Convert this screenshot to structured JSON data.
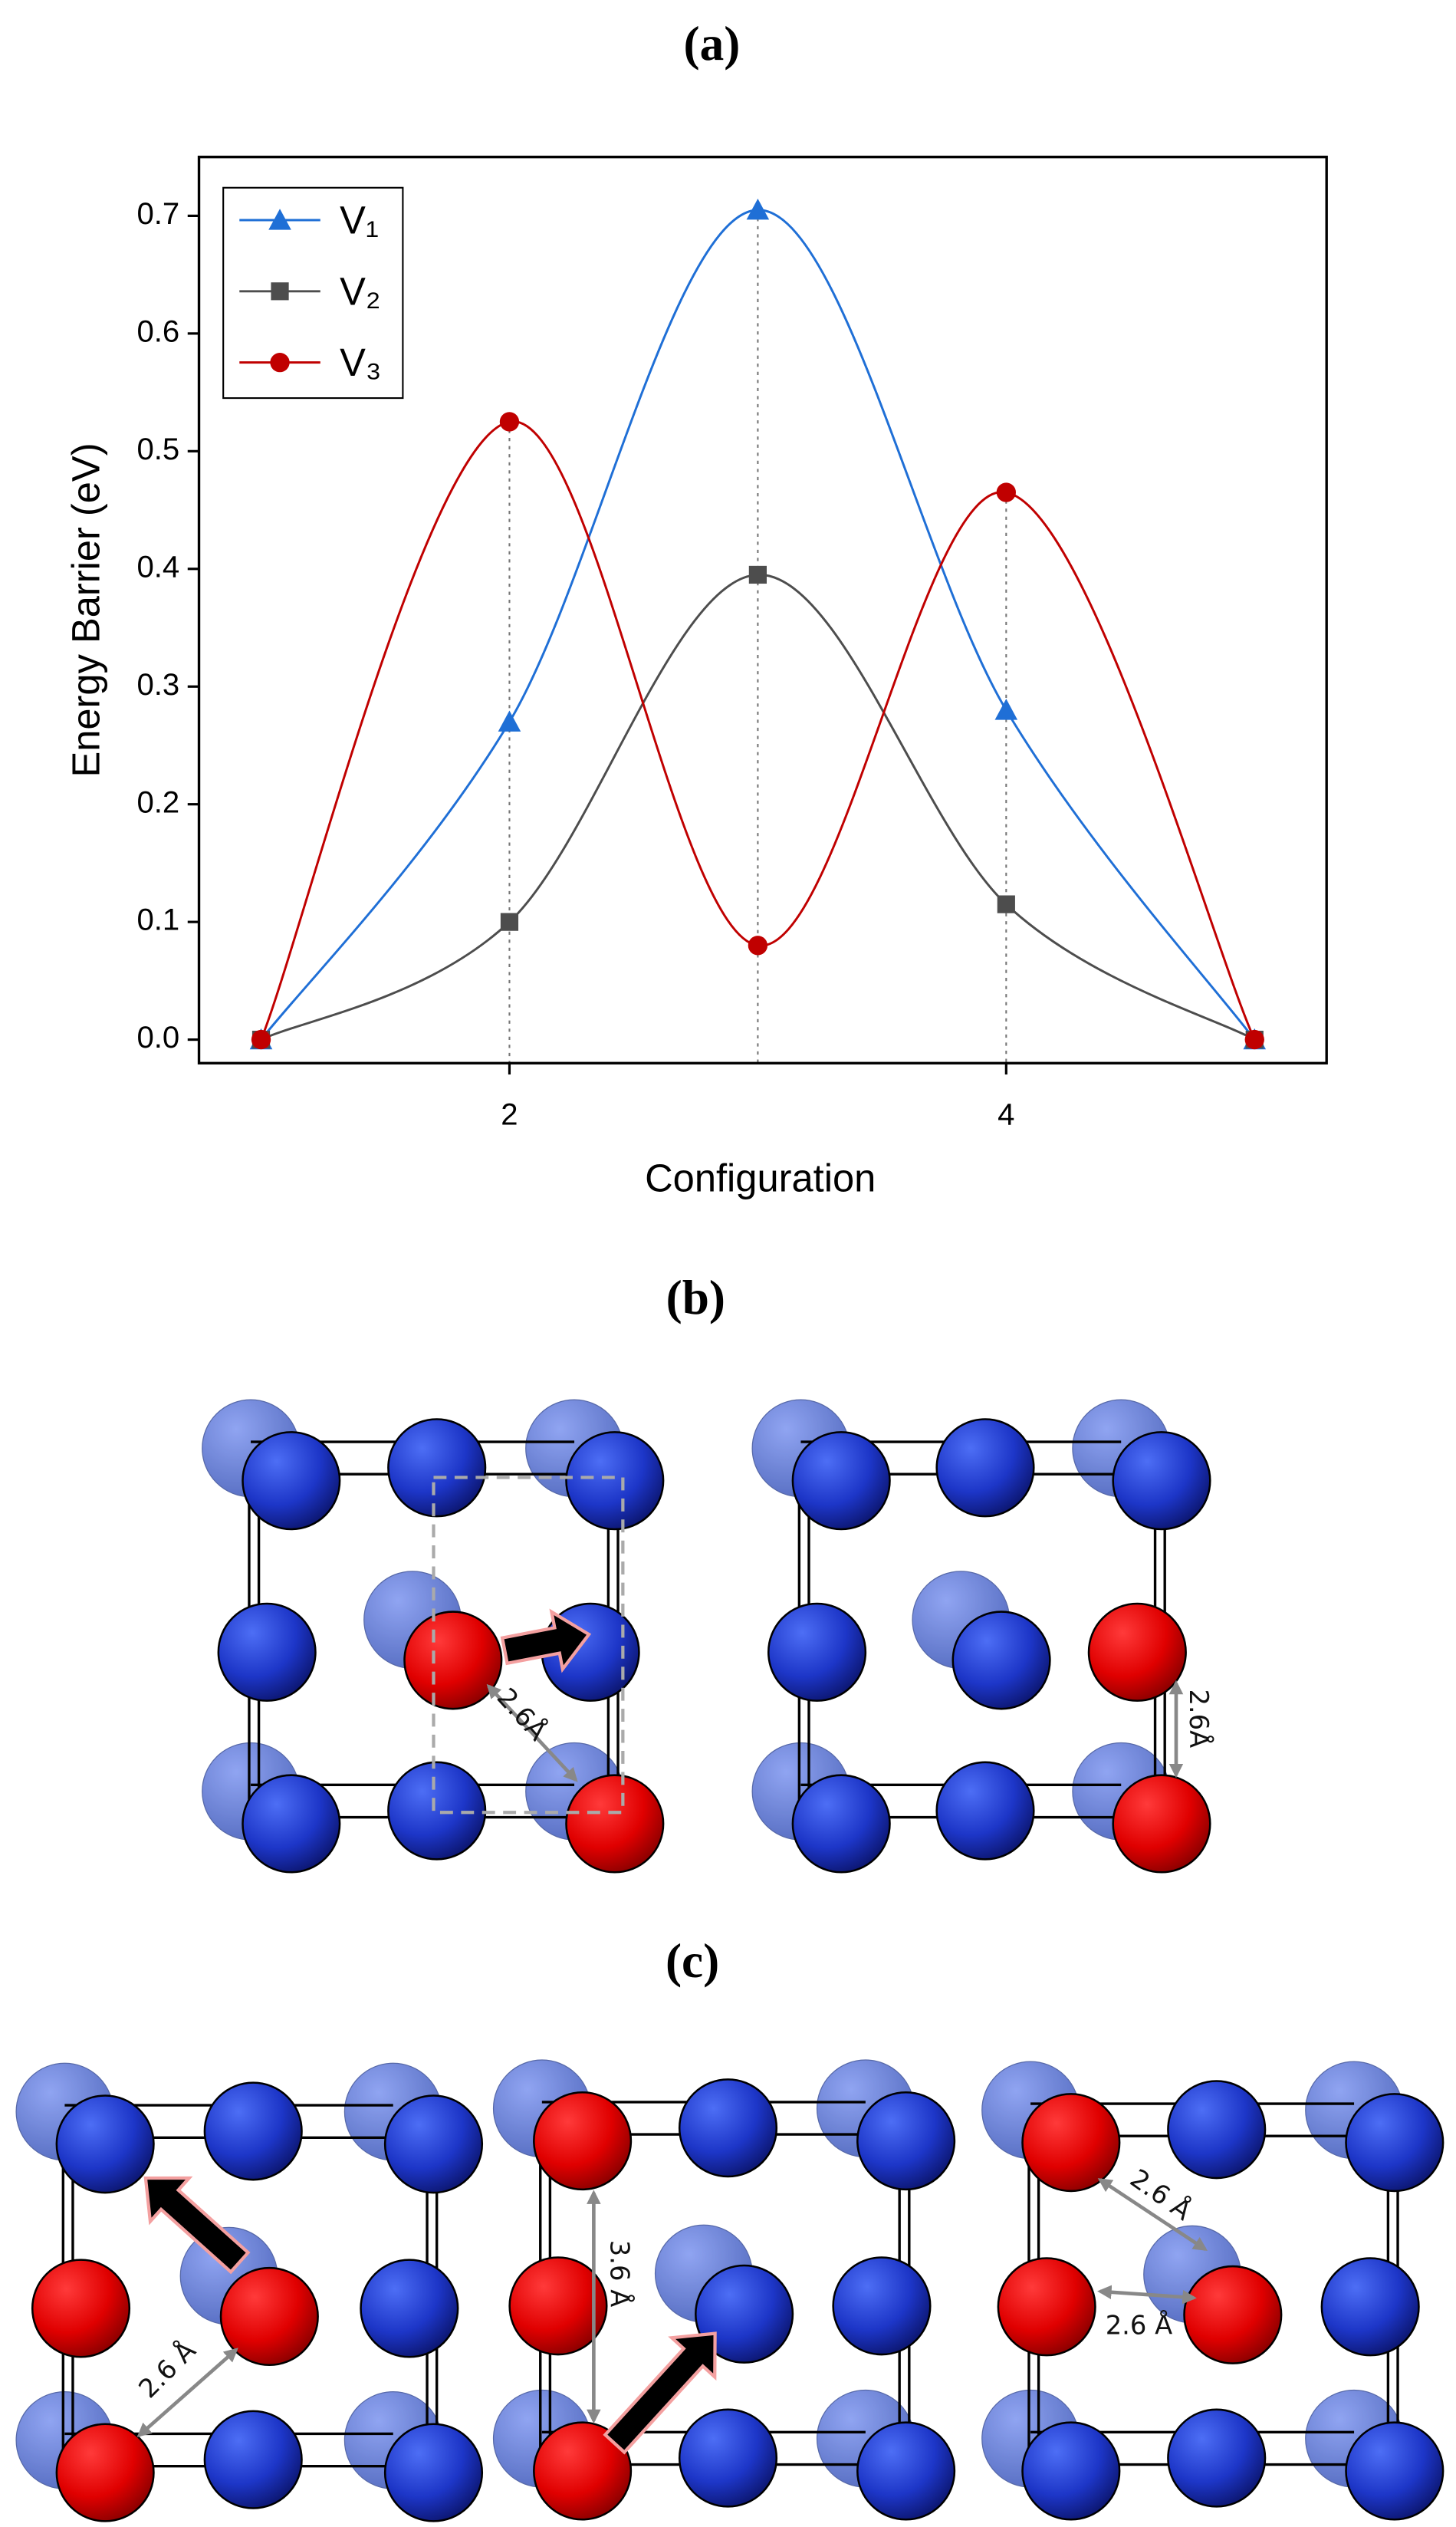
{
  "chart_data": {
    "type": "line",
    "x_label": "Configuration",
    "y_label": "Energy Barrier (eV)",
    "x": [
      1,
      2,
      3,
      4,
      5
    ],
    "series": [
      {
        "name": "V₁",
        "color": "#1f6fd6",
        "marker": "triangle",
        "values": [
          0,
          0.27,
          0.705,
          0.28,
          0
        ]
      },
      {
        "name": "V₂",
        "color": "#4d4d4d",
        "marker": "square",
        "values": [
          0,
          0.1,
          0.395,
          0.115,
          0
        ]
      },
      {
        "name": "V₃",
        "color": "#c00000",
        "marker": "circle",
        "values": [
          0,
          0.525,
          0.08,
          0.465,
          0
        ]
      }
    ],
    "xlim": [
      0.75,
      5.29
    ],
    "xticks": [
      2,
      4
    ],
    "ylim": [
      -0.02,
      0.75
    ],
    "yticks": [
      {
        "value": 0,
        "label": "0.0"
      },
      0.1,
      0.2,
      0.3,
      0.4,
      0.5,
      0.6,
      0.7
    ],
    "legend": "upper left",
    "smooth": true
  },
  "panel_labels": [
    "(a)",
    "(b)",
    "(c)"
  ],
  "distance_labels": [
    "2.6Å",
    "2.6Å",
    "2.6 Å",
    "3.6 Å",
    "2.6 Å",
    "2.6 Å"
  ]
}
